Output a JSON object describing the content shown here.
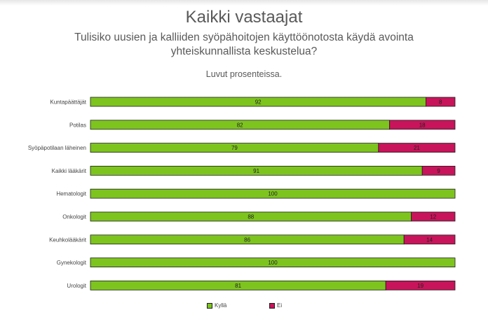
{
  "header": {
    "title": "Kaikki vastaajat",
    "subtitle": "Tulisiko uusien ja kalliiden syöpähoitojen käyttöönotosta käydä avointa yhteiskunnallista keskustelua?",
    "units_note": "Luvut prosenteissa."
  },
  "colors": {
    "yes": "#7dc41f",
    "no": "#c8145a",
    "border": "#1e1e1e"
  },
  "chart_data": {
    "type": "bar",
    "orientation": "horizontal",
    "stacked": true,
    "title": "Kaikki vastaajat",
    "subtitle": "Tulisiko uusien ja kalliiden syöpähoitojen käyttöönotosta käydä avointa yhteiskunnallista keskustelua?",
    "categories": [
      "Kuntapäättäjät",
      "Potilas",
      "Syöpäpotilaan läheinen",
      "Kaikki lääkärit",
      "Hematologit",
      "Onkologit",
      "Keuhkolääkärit",
      "Gynekologit",
      "Urologit"
    ],
    "series": [
      {
        "name": "Kyllä",
        "values": [
          92,
          82,
          79,
          91,
          100,
          88,
          86,
          100,
          81
        ]
      },
      {
        "name": "Ei",
        "values": [
          8,
          18,
          21,
          9,
          0,
          12,
          14,
          0,
          19
        ]
      }
    ],
    "xlim": [
      0,
      100
    ],
    "grid": false,
    "legend_position": "bottom"
  }
}
